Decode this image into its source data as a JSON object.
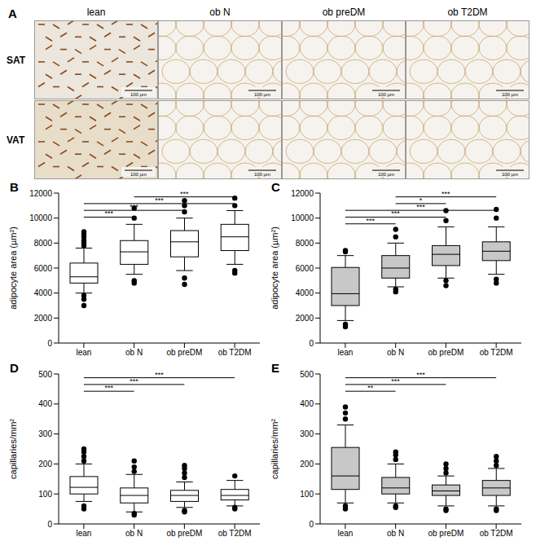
{
  "image_panel": {
    "panel_label": "A",
    "columns": [
      "lean",
      "ob N",
      "ob preDM",
      "ob T2DM"
    ],
    "rows": [
      "SAT",
      "VAT"
    ],
    "scale_bar": "100 µm"
  },
  "chart_data": [
    {
      "type": "box",
      "panel_label": "B",
      "y_label": "adipocyte area (µm²)",
      "categories": [
        "lean",
        "ob N",
        "ob preDM",
        "ob T2DM"
      ],
      "color": "#ffffff",
      "ylim": [
        0,
        12000
      ],
      "yticks": [
        0,
        2000,
        4000,
        6000,
        8000,
        10000,
        12000
      ],
      "grid": false,
      "boxes": [
        {
          "whislo": 4000,
          "q1": 4800,
          "median": 5300,
          "q3": 6400,
          "whishi": 7600,
          "outliers": [
            3000,
            3500,
            3800,
            7800,
            8000,
            8200,
            8500,
            8700,
            8900
          ]
        },
        {
          "whislo": 5500,
          "q1": 6300,
          "median": 7300,
          "q3": 8200,
          "whishi": 9500,
          "outliers": [
            4800,
            5000,
            10000,
            10800
          ]
        },
        {
          "whislo": 5800,
          "q1": 6900,
          "median": 8100,
          "q3": 9000,
          "whishi": 10000,
          "outliers": [
            4700,
            5200,
            10500,
            11000,
            11400
          ]
        },
        {
          "whislo": 6300,
          "q1": 7400,
          "median": 8500,
          "q3": 9500,
          "whishi": 10600,
          "outliers": [
            5600,
            5800,
            11000,
            11600
          ]
        }
      ],
      "significance": [
        {
          "from": "ob N",
          "to": "ob T2DM",
          "label": "***"
        },
        {
          "from": "lean",
          "to": "ob T2DM",
          "label": "***"
        },
        {
          "from": "lean",
          "to": "ob preDM",
          "label": "***"
        },
        {
          "from": "lean",
          "to": "ob N",
          "label": "***"
        }
      ]
    },
    {
      "type": "box",
      "panel_label": "C",
      "y_label": "adipocyte area (µm²)",
      "categories": [
        "lean",
        "ob N",
        "ob preDM",
        "ob T2DM"
      ],
      "color": "#c8c8c8",
      "ylim": [
        0,
        12000
      ],
      "yticks": [
        0,
        2000,
        4000,
        6000,
        8000,
        10000,
        12000
      ],
      "grid": false,
      "boxes": [
        {
          "whislo": 1800,
          "q1": 3000,
          "median": 3950,
          "q3": 6050,
          "whishi": 7000,
          "outliers": [
            1300,
            1500,
            7300,
            7400
          ]
        },
        {
          "whislo": 4500,
          "q1": 5200,
          "median": 6000,
          "q3": 7000,
          "whishi": 8000,
          "outliers": [
            4100,
            4300,
            8500,
            9100
          ]
        },
        {
          "whislo": 5200,
          "q1": 6200,
          "median": 7100,
          "q3": 7800,
          "whishi": 9300,
          "outliers": [
            4600,
            5000,
            9800,
            10600
          ]
        },
        {
          "whislo": 5500,
          "q1": 6600,
          "median": 7350,
          "q3": 8100,
          "whishi": 9300,
          "outliers": [
            4800,
            5100,
            10000,
            10700
          ]
        }
      ],
      "significance": [
        {
          "from": "ob N",
          "to": "ob T2DM",
          "label": "***"
        },
        {
          "from": "ob N",
          "to": "ob preDM",
          "label": "*"
        },
        {
          "from": "lean",
          "to": "ob T2DM",
          "label": "***"
        },
        {
          "from": "lean",
          "to": "ob preDM",
          "label": "***"
        },
        {
          "from": "lean",
          "to": "ob N",
          "label": "***"
        }
      ]
    },
    {
      "type": "box",
      "panel_label": "D",
      "y_label": "capillaries/mm²",
      "categories": [
        "lean",
        "ob N",
        "ob preDM",
        "ob T2DM"
      ],
      "color": "#ffffff",
      "ylim": [
        0,
        500
      ],
      "yticks": [
        0,
        100,
        200,
        300,
        400,
        500
      ],
      "grid": false,
      "boxes": [
        {
          "whislo": 75,
          "q1": 100,
          "median": 122,
          "q3": 158,
          "whishi": 200,
          "outliers": [
            50,
            60,
            210,
            225,
            240,
            250
          ]
        },
        {
          "whislo": 40,
          "q1": 70,
          "median": 95,
          "q3": 120,
          "whishi": 165,
          "outliers": [
            30,
            35,
            175,
            190,
            210
          ]
        },
        {
          "whislo": 55,
          "q1": 75,
          "median": 95,
          "q3": 112,
          "whishi": 140,
          "outliers": [
            40,
            45,
            155,
            170,
            185,
            195
          ]
        },
        {
          "whislo": 60,
          "q1": 80,
          "median": 95,
          "q3": 115,
          "whishi": 145,
          "outliers": [
            50,
            55,
            160
          ]
        }
      ],
      "significance": [
        {
          "from": "lean",
          "to": "ob T2DM",
          "label": "***"
        },
        {
          "from": "lean",
          "to": "ob preDM",
          "label": "***"
        },
        {
          "from": "lean",
          "to": "ob N",
          "label": "***"
        }
      ]
    },
    {
      "type": "box",
      "panel_label": "E",
      "y_label": "capillaries/mm²",
      "categories": [
        "lean",
        "ob N",
        "ob preDM",
        "ob T2DM"
      ],
      "color": "#c8c8c8",
      "ylim": [
        0,
        500
      ],
      "yticks": [
        0,
        100,
        200,
        300,
        400,
        500
      ],
      "grid": false,
      "boxes": [
        {
          "whislo": 70,
          "q1": 115,
          "median": 160,
          "q3": 255,
          "whishi": 330,
          "outliers": [
            50,
            60,
            350,
            370,
            390
          ]
        },
        {
          "whislo": 70,
          "q1": 100,
          "median": 120,
          "q3": 155,
          "whishi": 200,
          "outliers": [
            55,
            60,
            215,
            230,
            240
          ]
        },
        {
          "whislo": 60,
          "q1": 95,
          "median": 110,
          "q3": 130,
          "whishi": 160,
          "outliers": [
            45,
            50,
            170,
            185,
            200
          ]
        },
        {
          "whislo": 60,
          "q1": 95,
          "median": 120,
          "q3": 145,
          "whishi": 185,
          "outliers": [
            45,
            50,
            195,
            210,
            225
          ]
        }
      ],
      "significance": [
        {
          "from": "lean",
          "to": "ob T2DM",
          "label": "***"
        },
        {
          "from": "lean",
          "to": "ob preDM",
          "label": "***"
        },
        {
          "from": "lean",
          "to": "ob N",
          "label": "**"
        }
      ]
    }
  ]
}
